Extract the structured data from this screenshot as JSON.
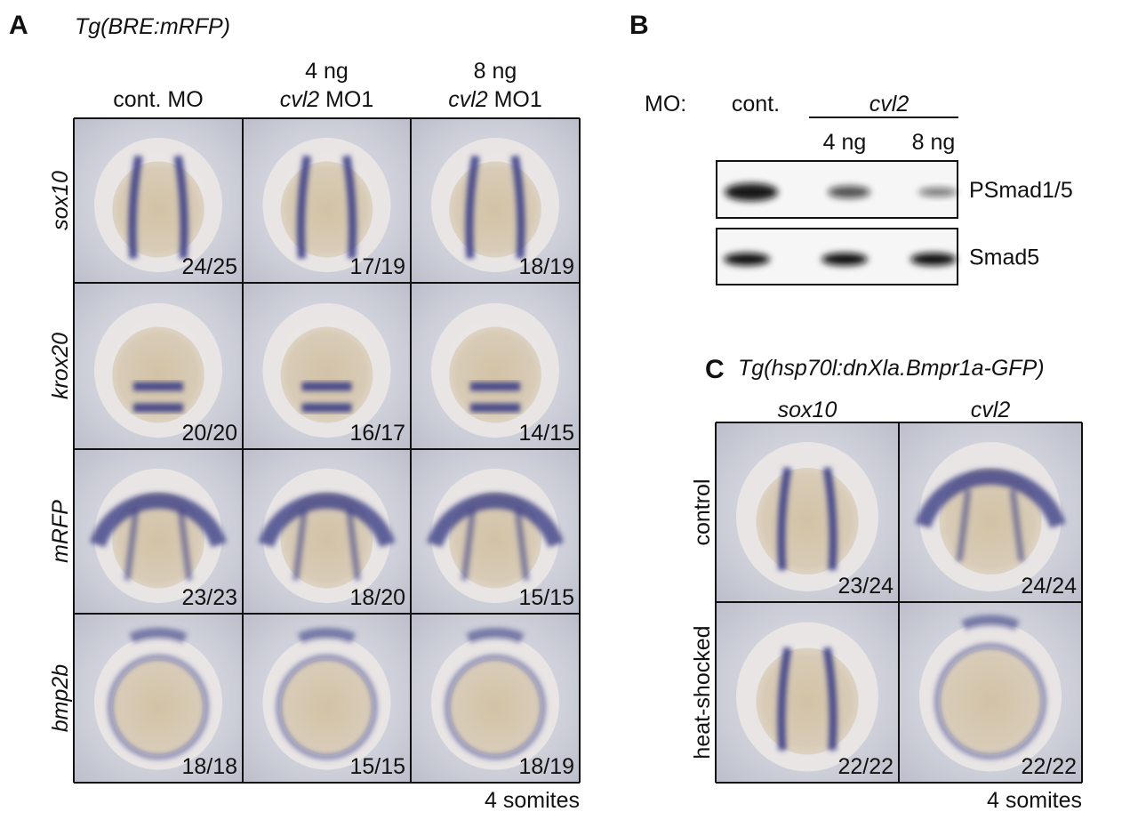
{
  "panel_a": {
    "label": "A",
    "title": "Tg(BRE:mRFP)",
    "columns": [
      {
        "label": "cont. MO"
      },
      {
        "dose": "4 ng",
        "gene": "cvl2",
        "suffix": "MO1"
      },
      {
        "dose": "8 ng",
        "gene": "cvl2",
        "suffix": "MO1"
      }
    ],
    "rows": [
      {
        "gene": "sox10",
        "counts": [
          "24/25",
          "17/19",
          "18/19"
        ]
      },
      {
        "gene": "krox20",
        "counts": [
          "20/20",
          "16/17",
          "14/15"
        ]
      },
      {
        "gene": "mRFP",
        "counts": [
          "23/23",
          "18/20",
          "15/15"
        ]
      },
      {
        "gene": "bmp2b",
        "counts": [
          "18/18",
          "15/15",
          "18/19"
        ]
      }
    ],
    "stage": "4 somites"
  },
  "panel_b": {
    "label": "B",
    "mo_label": "MO:",
    "control": "cont.",
    "gene": "cvl2",
    "doses": [
      "4 ng",
      "8 ng"
    ],
    "blots": [
      "PSmad1/5",
      "Smad5"
    ]
  },
  "panel_c": {
    "label": "C",
    "title": "Tg(hsp70l:dnXla.Bmpr1a-GFP)",
    "columns": [
      "sox10",
      "cvl2"
    ],
    "rows": [
      {
        "condition": "control",
        "counts": [
          "23/24",
          "24/24"
        ]
      },
      {
        "condition": "heat-shocked",
        "counts": [
          "22/22",
          "22/22"
        ]
      }
    ],
    "stage": "4 somites"
  }
}
